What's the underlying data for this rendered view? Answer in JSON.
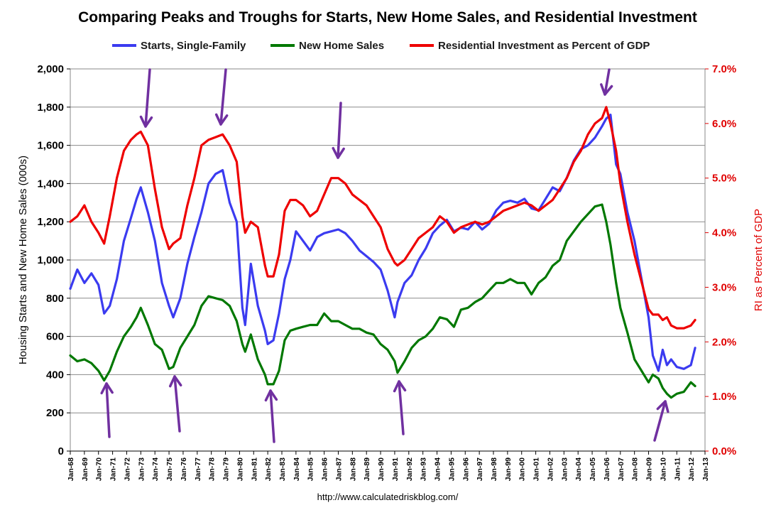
{
  "chart_data": {
    "type": "line",
    "title": "Comparing Peaks and Troughs for Starts, New Home Sales, and Residential Investment",
    "ylabel": "Housing Starts and New Home Sales (000s)",
    "y2label": "RI as Percent of GDP",
    "ylim": [
      0,
      2000
    ],
    "y2lim": [
      0,
      7.0
    ],
    "yticks": [
      "0",
      "200",
      "400",
      "600",
      "800",
      "1,000",
      "1,200",
      "1,400",
      "1,600",
      "1,800",
      "2,000"
    ],
    "y2ticks": [
      "0.0%",
      "1.0%",
      "2.0%",
      "3.0%",
      "4.0%",
      "5.0%",
      "6.0%",
      "7.0%"
    ],
    "xticks": [
      "Jan-68",
      "Jan-69",
      "Jan-70",
      "Jan-71",
      "Jan-72",
      "Jan-73",
      "Jan-74",
      "Jan-75",
      "Jan-76",
      "Jan-77",
      "Jan-78",
      "Jan-79",
      "Jan-80",
      "Jan-81",
      "Jan-82",
      "Jan-83",
      "Jan-84",
      "Jan-85",
      "Jan-86",
      "Jan-87",
      "Jan-88",
      "Jan-89",
      "Jan-90",
      "Jan-91",
      "Jan-92",
      "Jan-93",
      "Jan-94",
      "Jan-95",
      "Jan-96",
      "Jan-97",
      "Jan-98",
      "Jan-99",
      "Jan-00",
      "Jan-01",
      "Jan-02",
      "Jan-03",
      "Jan-04",
      "Jan-05",
      "Jan-06",
      "Jan-07",
      "Jan-08",
      "Jan-09",
      "Jan-10",
      "Jan-11",
      "Jan-12",
      "Jan-13"
    ],
    "grid": true,
    "legend_position": "top",
    "source": "http://www.calculatedriskblog.com/",
    "series": [
      {
        "name": "Starts, Single-Family",
        "axis": "left",
        "color": "#3b3bf0",
        "x": [
          1968.0,
          1968.5,
          1969.0,
          1969.5,
          1970.0,
          1970.4,
          1970.8,
          1971.3,
          1971.8,
          1972.3,
          1972.7,
          1973.0,
          1973.5,
          1974.0,
          1974.5,
          1975.0,
          1975.3,
          1975.8,
          1976.3,
          1976.8,
          1977.3,
          1977.8,
          1978.3,
          1978.8,
          1979.3,
          1979.8,
          1980.2,
          1980.4,
          1980.8,
          1981.3,
          1981.8,
          1982.0,
          1982.4,
          1982.8,
          1983.2,
          1983.6,
          1984.0,
          1984.5,
          1985.0,
          1985.5,
          1986.0,
          1986.5,
          1987.0,
          1987.5,
          1988.0,
          1988.5,
          1989.0,
          1989.5,
          1990.0,
          1990.5,
          1991.0,
          1991.2,
          1991.7,
          1992.2,
          1992.7,
          1993.2,
          1993.7,
          1994.2,
          1994.7,
          1995.2,
          1995.7,
          1996.2,
          1996.7,
          1997.2,
          1997.7,
          1998.2,
          1998.7,
          1999.2,
          1999.7,
          2000.2,
          2000.7,
          2001.2,
          2001.7,
          2002.2,
          2002.7,
          2003.2,
          2003.7,
          2004.2,
          2004.7,
          2005.2,
          2005.7,
          2006.0,
          2006.3,
          2006.7,
          2007.0,
          2007.5,
          2008.0,
          2008.5,
          2009.0,
          2009.3,
          2009.7,
          2010.0,
          2010.3,
          2010.6,
          2011.0,
          2011.5,
          2012.0,
          2012.3
        ],
        "values": [
          850,
          950,
          880,
          930,
          870,
          720,
          760,
          900,
          1100,
          1220,
          1320,
          1380,
          1250,
          1100,
          880,
          760,
          700,
          800,
          980,
          1120,
          1250,
          1400,
          1450,
          1470,
          1300,
          1200,
          750,
          660,
          980,
          760,
          630,
          560,
          580,
          720,
          900,
          1000,
          1150,
          1100,
          1050,
          1120,
          1140,
          1150,
          1160,
          1140,
          1100,
          1050,
          1020,
          990,
          950,
          840,
          700,
          780,
          880,
          920,
          1000,
          1060,
          1140,
          1180,
          1210,
          1150,
          1170,
          1160,
          1200,
          1160,
          1190,
          1260,
          1300,
          1310,
          1300,
          1320,
          1270,
          1260,
          1320,
          1380,
          1360,
          1430,
          1520,
          1580,
          1600,
          1640,
          1700,
          1740,
          1760,
          1500,
          1450,
          1250,
          1100,
          900,
          700,
          500,
          420,
          530,
          450,
          480,
          440,
          430,
          450,
          540
        ]
      },
      {
        "name": "New Home Sales",
        "axis": "left",
        "color": "#007800",
        "x": [
          1968.0,
          1968.5,
          1969.0,
          1969.5,
          1970.0,
          1970.4,
          1970.8,
          1971.3,
          1971.8,
          1972.3,
          1972.7,
          1973.0,
          1973.5,
          1974.0,
          1974.5,
          1975.0,
          1975.3,
          1975.8,
          1976.3,
          1976.8,
          1977.3,
          1977.8,
          1978.3,
          1978.8,
          1979.3,
          1979.8,
          1980.2,
          1980.4,
          1980.8,
          1981.3,
          1981.8,
          1982.0,
          1982.4,
          1982.8,
          1983.2,
          1983.6,
          1984.0,
          1984.5,
          1985.0,
          1985.5,
          1986.0,
          1986.5,
          1987.0,
          1987.5,
          1988.0,
          1988.5,
          1989.0,
          1989.5,
          1990.0,
          1990.5,
          1991.0,
          1991.2,
          1991.7,
          1992.2,
          1992.7,
          1993.2,
          1993.7,
          1994.2,
          1994.7,
          1995.2,
          1995.7,
          1996.2,
          1996.7,
          1997.2,
          1997.7,
          1998.2,
          1998.7,
          1999.2,
          1999.7,
          2000.2,
          2000.7,
          2001.2,
          2001.7,
          2002.2,
          2002.7,
          2003.2,
          2003.7,
          2004.2,
          2004.7,
          2005.2,
          2005.7,
          2006.0,
          2006.3,
          2006.7,
          2007.0,
          2007.5,
          2008.0,
          2008.5,
          2009.0,
          2009.3,
          2009.7,
          2010.0,
          2010.3,
          2010.6,
          2011.0,
          2011.5,
          2012.0,
          2012.3
        ],
        "values": [
          500,
          470,
          480,
          460,
          420,
          370,
          420,
          520,
          600,
          650,
          700,
          750,
          660,
          560,
          530,
          430,
          440,
          540,
          600,
          660,
          760,
          810,
          800,
          790,
          760,
          680,
          560,
          520,
          610,
          480,
          400,
          350,
          350,
          420,
          580,
          630,
          640,
          650,
          660,
          660,
          720,
          680,
          680,
          660,
          640,
          640,
          620,
          610,
          560,
          530,
          470,
          410,
          470,
          540,
          580,
          600,
          640,
          700,
          690,
          650,
          740,
          750,
          780,
          800,
          840,
          880,
          880,
          900,
          880,
          880,
          820,
          880,
          910,
          970,
          1000,
          1100,
          1150,
          1200,
          1240,
          1280,
          1290,
          1200,
          1080,
          880,
          750,
          620,
          480,
          420,
          360,
          400,
          380,
          330,
          300,
          280,
          300,
          310,
          360,
          340
        ]
      },
      {
        "name": "Residential Investment as Percent of GDP",
        "axis": "right",
        "color": "#ee0000",
        "x": [
          1968.0,
          1968.5,
          1969.0,
          1969.5,
          1970.0,
          1970.4,
          1970.8,
          1971.3,
          1971.8,
          1972.3,
          1972.7,
          1973.0,
          1973.5,
          1974.0,
          1974.5,
          1975.0,
          1975.3,
          1975.8,
          1976.3,
          1976.8,
          1977.3,
          1977.8,
          1978.3,
          1978.8,
          1979.3,
          1979.8,
          1980.2,
          1980.4,
          1980.8,
          1981.3,
          1981.8,
          1982.0,
          1982.4,
          1982.8,
          1983.2,
          1983.6,
          1984.0,
          1984.5,
          1985.0,
          1985.5,
          1986.0,
          1986.5,
          1987.0,
          1987.5,
          1988.0,
          1988.5,
          1989.0,
          1989.5,
          1990.0,
          1990.5,
          1991.0,
          1991.2,
          1991.7,
          1992.2,
          1992.7,
          1993.2,
          1993.7,
          1994.2,
          1994.7,
          1995.2,
          1995.7,
          1996.2,
          1996.7,
          1997.2,
          1997.7,
          1998.2,
          1998.7,
          1999.2,
          1999.7,
          2000.2,
          2000.7,
          2001.2,
          2001.7,
          2002.2,
          2002.7,
          2003.2,
          2003.7,
          2004.2,
          2004.7,
          2005.2,
          2005.7,
          2006.0,
          2006.3,
          2006.7,
          2007.0,
          2007.5,
          2008.0,
          2008.5,
          2009.0,
          2009.3,
          2009.7,
          2010.0,
          2010.3,
          2010.6,
          2011.0,
          2011.5,
          2012.0,
          2012.3
        ],
        "values": [
          4.2,
          4.3,
          4.5,
          4.2,
          4.0,
          3.8,
          4.3,
          5.0,
          5.5,
          5.7,
          5.8,
          5.85,
          5.6,
          4.8,
          4.1,
          3.7,
          3.8,
          3.9,
          4.5,
          5.0,
          5.6,
          5.7,
          5.75,
          5.8,
          5.6,
          5.3,
          4.3,
          4.0,
          4.2,
          4.1,
          3.4,
          3.2,
          3.2,
          3.6,
          4.4,
          4.6,
          4.6,
          4.5,
          4.3,
          4.4,
          4.7,
          5.0,
          5.0,
          4.9,
          4.7,
          4.6,
          4.5,
          4.3,
          4.1,
          3.7,
          3.45,
          3.4,
          3.5,
          3.7,
          3.9,
          4.0,
          4.1,
          4.3,
          4.2,
          4.0,
          4.1,
          4.15,
          4.2,
          4.15,
          4.2,
          4.3,
          4.4,
          4.45,
          4.5,
          4.55,
          4.5,
          4.4,
          4.5,
          4.6,
          4.8,
          5.0,
          5.3,
          5.5,
          5.8,
          6.0,
          6.1,
          6.3,
          6.0,
          5.5,
          4.9,
          4.2,
          3.6,
          3.1,
          2.6,
          2.5,
          2.5,
          2.4,
          2.45,
          2.3,
          2.25,
          2.25,
          2.3,
          2.4
        ]
      }
    ]
  }
}
